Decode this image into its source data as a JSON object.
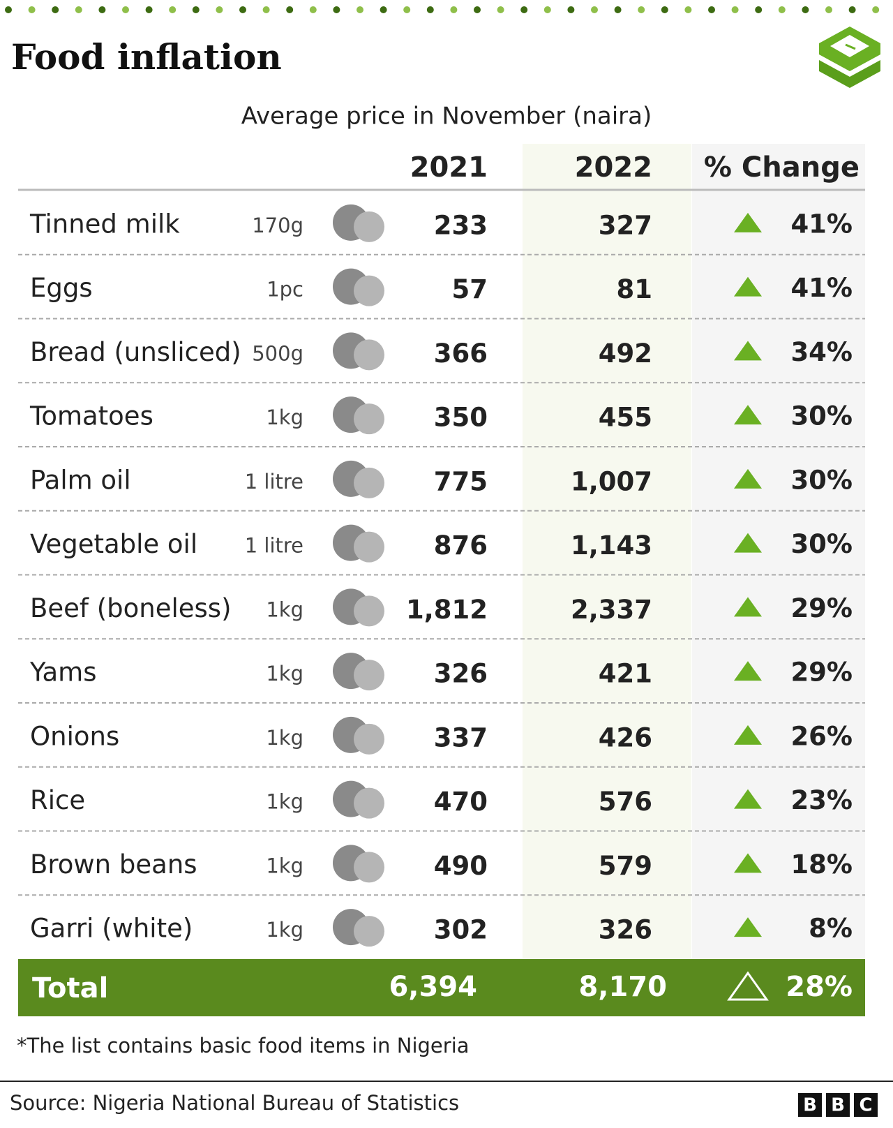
{
  "header": {
    "title": "Food inflation",
    "subtitle": "Average price in November (naira)"
  },
  "table": {
    "columns": [
      "2021",
      "2022",
      "% Change"
    ],
    "rows": [
      [
        "Tinned milk",
        "170g",
        "233",
        "327",
        "41%"
      ],
      [
        "Eggs",
        "1pc",
        "57",
        "81",
        "41%"
      ],
      [
        "Bread (unsliced)",
        "500g",
        "366",
        "492",
        "34%"
      ],
      [
        "Tomatoes",
        "1kg",
        "350",
        "455",
        "30%"
      ],
      [
        "Palm oil",
        "1 litre",
        "775",
        "1,007",
        "30%"
      ],
      [
        "Vegetable oil",
        "1 litre",
        "876",
        "1,143",
        "30%"
      ],
      [
        "Beef (boneless)",
        "1kg",
        "1,812",
        "2,337",
        "29%"
      ],
      [
        "Yams",
        "1kg",
        "326",
        "421",
        "29%"
      ],
      [
        "Onions",
        "1kg",
        "337",
        "426",
        "26%"
      ],
      [
        "Rice",
        "1kg",
        "470",
        "576",
        "23%"
      ],
      [
        "Brown beans",
        "1kg",
        "490",
        "579",
        "18%"
      ],
      [
        "Garri (white)",
        "1kg",
        "302",
        "326",
        "8%"
      ]
    ],
    "total": [
      "Total",
      "6,394",
      "8,170",
      "28%"
    ]
  },
  "footnote": "*The list contains basic food items in Nigeria",
  "source": "Source: Nigeria National Bureau of Statistics",
  "logo": [
    "B",
    "B",
    "C"
  ]
}
